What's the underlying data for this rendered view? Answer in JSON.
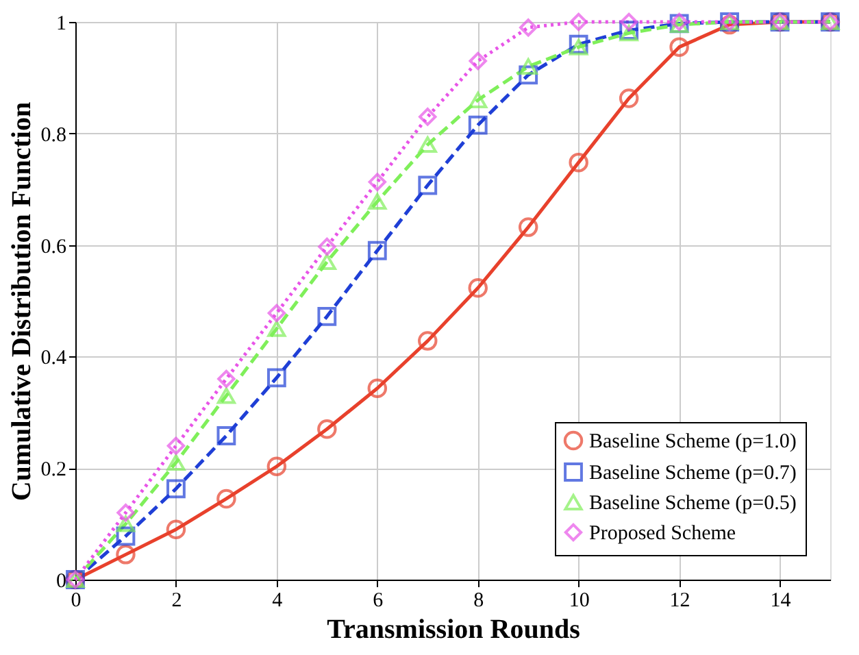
{
  "chart_data": {
    "type": "line",
    "xlabel": "Transmission Rounds",
    "ylabel": "Cumulative Distribution Function",
    "x": [
      0,
      1,
      2,
      3,
      4,
      5,
      6,
      7,
      8,
      9,
      10,
      11,
      12,
      13,
      14,
      15
    ],
    "xlim": [
      0,
      15
    ],
    "xticks": [
      0,
      2,
      4,
      6,
      8,
      10,
      12,
      14
    ],
    "ylim": [
      0,
      1
    ],
    "yticks": [
      0,
      0.2,
      0.4,
      0.6,
      0.8,
      1
    ],
    "grid": true,
    "legend": "bottom right",
    "series": [
      {
        "name": "Baseline Scheme (p=1.0)",
        "color": "#e8412c",
        "marker": "circle",
        "line_style": "solid",
        "values": [
          0,
          0.045,
          0.09,
          0.145,
          0.203,
          0.27,
          0.343,
          0.428,
          0.523,
          0.632,
          0.748,
          0.863,
          0.955,
          0.995,
          1,
          1
        ]
      },
      {
        "name": "Baseline Scheme (p=0.7)",
        "color": "#1f3fd6",
        "marker": "square",
        "line_style": "dashed",
        "values": [
          0,
          0.078,
          0.163,
          0.258,
          0.362,
          0.472,
          0.59,
          0.707,
          0.815,
          0.905,
          0.96,
          0.985,
          0.997,
          1,
          1,
          1
        ]
      },
      {
        "name": "Baseline Scheme (p=0.5)",
        "color": "#7fef5a",
        "marker": "triangle",
        "line_style": "dashed",
        "values": [
          0,
          0.1,
          0.21,
          0.33,
          0.45,
          0.57,
          0.678,
          0.78,
          0.86,
          0.92,
          0.955,
          0.98,
          0.995,
          1,
          1,
          1
        ]
      },
      {
        "name": "Proposed Scheme",
        "color": "#e855e8",
        "marker": "diamond",
        "line_style": "dotted",
        "values": [
          0,
          0.12,
          0.24,
          0.36,
          0.478,
          0.597,
          0.713,
          0.83,
          0.93,
          0.99,
          1,
          1,
          1,
          1,
          1,
          1
        ]
      }
    ]
  }
}
